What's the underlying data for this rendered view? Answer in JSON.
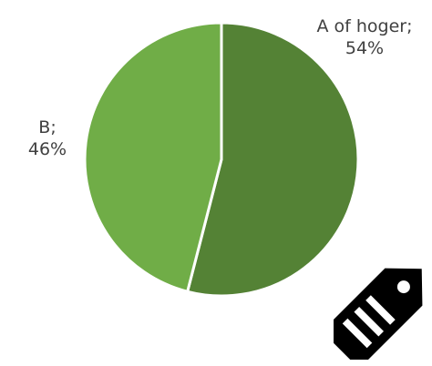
{
  "chart_data": {
    "type": "pie",
    "slices": [
      {
        "name": "A of hoger",
        "value": 54,
        "label": "A of hoger;",
        "pct_label": "54%",
        "color": "#548235"
      },
      {
        "name": "B",
        "value": 46,
        "label": "B;",
        "pct_label": "46%",
        "color": "#70ad47"
      }
    ]
  },
  "icons": {
    "corner_icon": "price-tag-icon"
  }
}
